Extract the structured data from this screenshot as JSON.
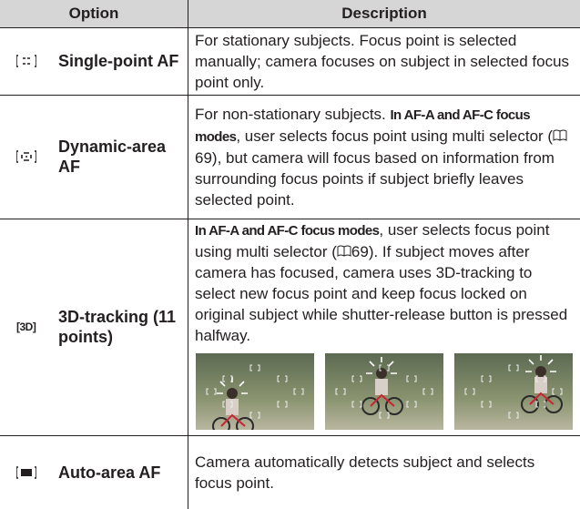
{
  "table": {
    "header": [
      "Option",
      "Description"
    ],
    "rows": [
      {
        "option": "Single-point AF",
        "description": [
          {
            "text": "For stationary subjects. Focus point is selected manually; camera focuses on subject in selected focus point only."
          }
        ]
      },
      {
        "option": "Dynamic-area AF",
        "description": [
          {
            "text": "For non-stationary subjects. "
          },
          {
            "text": "In AF-A and AF-C focus modes",
            "bold": true
          },
          {
            "text": ", user selects focus point using multi selector ("
          },
          {
            "text": "69",
            "page_ref": true
          },
          {
            "text": "), but camera will focus based on information from surrounding focus points if subject briefly leaves selected point."
          }
        ]
      },
      {
        "option": "3D-tracking (11 points)",
        "icon": "3D",
        "description": [
          {
            "text": "In AF-A and AF-C focus modes",
            "bold": true
          },
          {
            "text": ", user selects focus point using multi selector ("
          },
          {
            "text": "69",
            "page_ref": true
          },
          {
            "text": "). If subject moves after camera has focused, camera uses 3D-tracking to select new focus point and keep focus locked on original subject while shutter-release button is pressed halfway."
          }
        ]
      },
      {
        "option": "Auto-area AF",
        "description": [
          {
            "text": "Camera automatically detects subject and selects focus point."
          }
        ]
      }
    ]
  }
}
